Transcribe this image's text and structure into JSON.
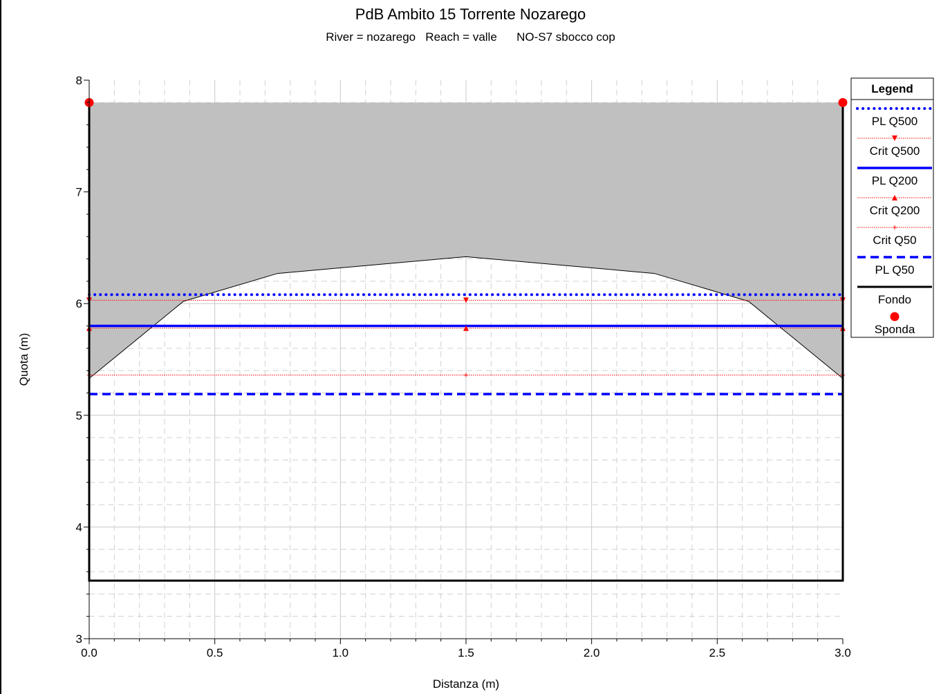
{
  "chart_data": {
    "type": "line",
    "title": "PdB Ambito 15 Torrente Nozarego",
    "subtitle": "River = nozarego   Reach = valle      NO-S7 sbocco cop",
    "xlabel": "Distanza (m)",
    "ylabel": "Quota (m)",
    "xlim": [
      0,
      3.0
    ],
    "ylim": [
      3,
      8
    ],
    "x_ticks": [
      "0.0",
      "0.5",
      "1.0",
      "1.5",
      "2.0",
      "2.5",
      "3.0"
    ],
    "y_ticks": [
      "3",
      "4",
      "5",
      "6",
      "7",
      "8"
    ],
    "grid": true,
    "legend_position": "right",
    "legend_title": "Legend",
    "structure": {
      "fill_color": "#c0c0c0",
      "top": 7.8,
      "soffit": {
        "x": [
          0,
          0.375,
          0.75,
          1.5,
          2.25,
          2.625,
          3.0
        ],
        "y": [
          5.33,
          6.02,
          6.27,
          6.42,
          6.27,
          6.02,
          5.33
        ]
      }
    },
    "series": [
      {
        "name": "PL Q500",
        "style": "dotted",
        "color": "#0000ff",
        "x": [
          0,
          3.0
        ],
        "y": [
          6.08,
          6.08
        ]
      },
      {
        "name": "Crit Q500",
        "style": "thin-dotted",
        "marker": "triangle-down",
        "color": "#ff0000",
        "x": [
          0,
          1.5,
          3.0
        ],
        "y": [
          6.03,
          6.03,
          6.03
        ]
      },
      {
        "name": "PL Q200",
        "style": "solid",
        "color": "#0000ff",
        "x": [
          0,
          3.0
        ],
        "y": [
          5.8,
          5.8
        ]
      },
      {
        "name": "Crit Q200",
        "style": "thin-dotted",
        "marker": "triangle-up",
        "color": "#ff0000",
        "x": [
          0,
          1.5,
          3.0
        ],
        "y": [
          5.78,
          5.78,
          5.78
        ]
      },
      {
        "name": "Crit Q50",
        "style": "thin-dotted",
        "marker": "plus",
        "color": "#ff0000",
        "x": [
          0,
          1.5,
          3.0
        ],
        "y": [
          5.36,
          5.36,
          5.36
        ]
      },
      {
        "name": "PL Q50",
        "style": "dashed",
        "color": "#0000ff",
        "x": [
          0,
          3.0
        ],
        "y": [
          5.19,
          5.19
        ]
      },
      {
        "name": "Fondo",
        "style": "black-solid",
        "color": "#000000",
        "x": [
          0,
          0,
          3.0,
          3.0
        ],
        "y": [
          7.8,
          3.52,
          3.52,
          7.8
        ]
      },
      {
        "name": "Sponda",
        "style": "none",
        "marker": "circle",
        "color": "#ff0000",
        "x": [
          0,
          3.0
        ],
        "y": [
          7.8,
          7.8
        ]
      }
    ]
  }
}
